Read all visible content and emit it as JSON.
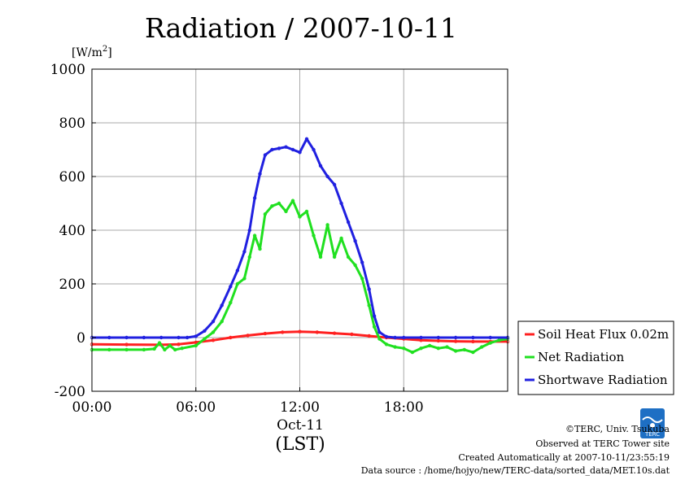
{
  "chart_data": {
    "type": "line",
    "title": "Radiation / 2007-10-11",
    "ylabel_unit": "[W/m",
    "ylabel_unit_sup": "2",
    "ylabel_unit_close": "]",
    "date_label": "Oct-11",
    "xlabel": "(LST)",
    "x_range_hours": [
      0,
      24
    ],
    "ylim": [
      -200,
      1000
    ],
    "y_ticks": [
      -200,
      0,
      200,
      400,
      600,
      800,
      1000
    ],
    "x_ticks": [
      {
        "hour": 0,
        "label": "00:00"
      },
      {
        "hour": 6,
        "label": "06:00"
      },
      {
        "hour": 12,
        "label": "12:00"
      },
      {
        "hour": 18,
        "label": "18:00"
      }
    ],
    "grid": true,
    "legend_position": "bottom-right outside",
    "series": [
      {
        "name": "Soil Heat Flux 0.02m",
        "color": "#ff2020",
        "x": [
          0,
          2,
          4,
          5,
          6,
          7,
          8,
          9,
          10,
          11,
          12,
          13,
          14,
          15,
          16,
          17,
          18,
          19,
          20,
          21,
          22,
          23,
          24
        ],
        "y": [
          -25,
          -26,
          -27,
          -25,
          -18,
          -10,
          0,
          8,
          15,
          20,
          22,
          20,
          16,
          12,
          6,
          0,
          -5,
          -10,
          -12,
          -14,
          -15,
          -15,
          -15
        ]
      },
      {
        "name": "Net Radiation",
        "color": "#20e020",
        "x": [
          0,
          1,
          2,
          3,
          3.6,
          3.9,
          4.2,
          4.5,
          4.8,
          5.2,
          6.0,
          6.5,
          7.0,
          7.5,
          8.0,
          8.4,
          8.8,
          9.1,
          9.4,
          9.7,
          10.0,
          10.4,
          10.8,
          11.2,
          11.6,
          12.0,
          12.4,
          12.8,
          13.2,
          13.6,
          14.0,
          14.4,
          14.8,
          15.2,
          15.6,
          16.0,
          16.3,
          16.6,
          17.0,
          17.5,
          18.0,
          18.5,
          19.0,
          19.5,
          20.0,
          20.5,
          21.0,
          21.5,
          22.0,
          22.5,
          23.0,
          23.5,
          24.0
        ],
        "y": [
          -45,
          -45,
          -45,
          -45,
          -42,
          -20,
          -45,
          -30,
          -45,
          -40,
          -30,
          -5,
          20,
          60,
          130,
          200,
          220,
          300,
          380,
          330,
          460,
          490,
          500,
          470,
          510,
          450,
          470,
          380,
          300,
          420,
          300,
          370,
          300,
          270,
          220,
          120,
          40,
          -5,
          -25,
          -35,
          -40,
          -55,
          -40,
          -30,
          -40,
          -35,
          -50,
          -45,
          -55,
          -35,
          -20,
          -10,
          -5
        ]
      },
      {
        "name": "Shortwave Radiation",
        "color": "#2020e0",
        "x": [
          0,
          1,
          2,
          3,
          4,
          5,
          5.5,
          6.0,
          6.5,
          7.0,
          7.5,
          8.0,
          8.4,
          8.8,
          9.1,
          9.4,
          9.7,
          10.0,
          10.4,
          10.8,
          11.2,
          11.6,
          12.0,
          12.4,
          12.8,
          13.2,
          13.6,
          14.0,
          14.4,
          14.8,
          15.2,
          15.6,
          16.0,
          16.3,
          16.6,
          17.0,
          17.5,
          18.0,
          19.0,
          20.0,
          21.0,
          22.0,
          23.0,
          24.0
        ],
        "y": [
          0,
          0,
          0,
          0,
          0,
          0,
          0,
          5,
          25,
          60,
          120,
          190,
          250,
          320,
          400,
          520,
          610,
          680,
          700,
          705,
          710,
          700,
          690,
          740,
          700,
          640,
          600,
          570,
          500,
          430,
          360,
          280,
          180,
          80,
          20,
          3,
          0,
          0,
          0,
          0,
          0,
          0,
          0,
          0
        ]
      }
    ]
  },
  "footer": {
    "copyright": "©TERC, Univ. Tsukuba",
    "observed": "Observed at TERC Tower site",
    "created": "Created Automatically at 2007-10-11/23:55:19",
    "source": "Data source : /home/hojyo/new/TERC-data/sorted_data/MET.10s.dat",
    "logo_text": "TERC"
  }
}
